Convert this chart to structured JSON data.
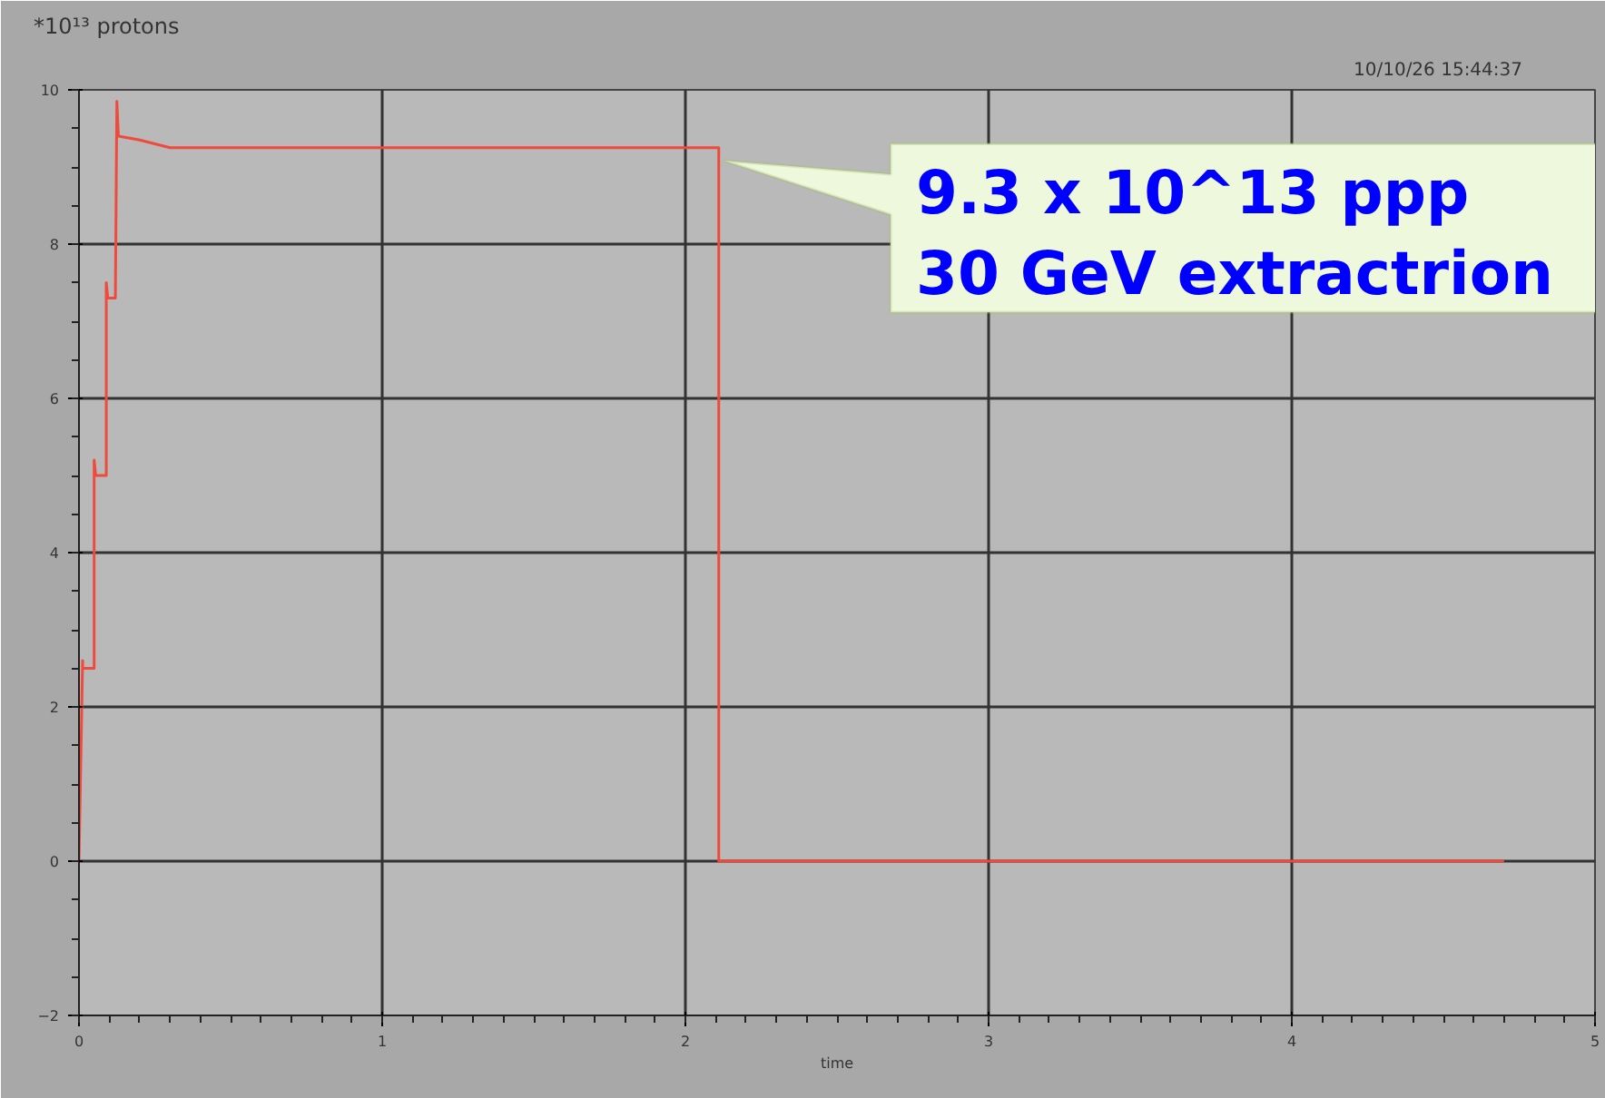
{
  "chart_data": {
    "type": "line",
    "ylabel": "*10¹³ protons",
    "xlabel": "time",
    "x": [
      0,
      0.012,
      0.012,
      0.05,
      0.05,
      0.055,
      0.09,
      0.09,
      0.095,
      0.12,
      0.125,
      0.13,
      0.2,
      0.3,
      2.11,
      2.11,
      4.7
    ],
    "series": [
      {
        "color": "#f04a3c",
        "values": [
          0,
          2.6,
          2.5,
          2.5,
          5.2,
          5.0,
          5.0,
          7.5,
          7.3,
          7.3,
          9.85,
          9.4,
          9.35,
          9.25,
          9.25,
          0,
          0
        ]
      }
    ],
    "xlim": [
      0,
      5
    ],
    "xticks": [
      0,
      1,
      2,
      3,
      4,
      5
    ],
    "ylim": [
      -2,
      10
    ],
    "yticks": [
      -2,
      0,
      2,
      4,
      6,
      8,
      10
    ],
    "grid": true,
    "marker": "none",
    "line_style": "solid",
    "annotations": [
      "10/10/26 15:44:37",
      "9.3 x 10^13 ppp\n30 GeV extractrion"
    ]
  }
}
